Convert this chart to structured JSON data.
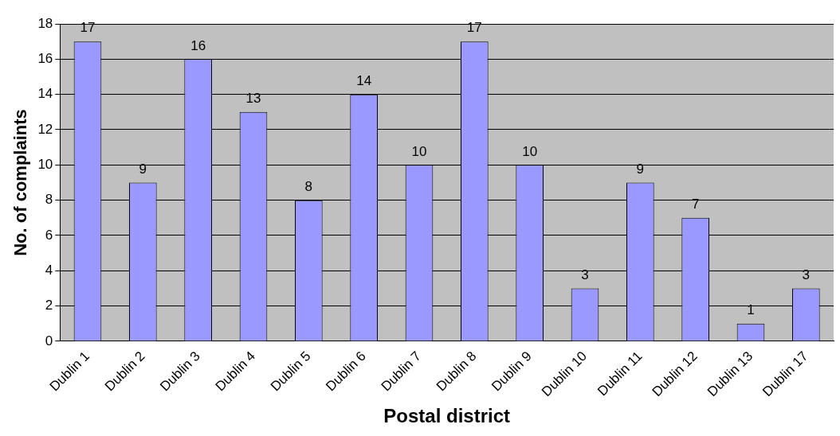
{
  "chart_data": {
    "type": "bar",
    "xlabel": "Postal district",
    "ylabel": "No. of complaints",
    "categories": [
      "Dublin 1",
      "Dublin 2",
      "Dublin 3",
      "Dublin 4",
      "Dublin 5",
      "Dublin 6",
      "Dublin 7",
      "Dublin 8",
      "Dublin 9",
      "Dublin 10",
      "Dublin 11",
      "Dublin 12",
      "Dublin 13",
      "Dublin 17"
    ],
    "values": [
      17,
      9,
      16,
      13,
      8,
      14,
      10,
      17,
      10,
      3,
      9,
      7,
      1,
      3
    ],
    "color": "#9999ff",
    "ylim": [
      0,
      18
    ],
    "yticks": [
      0,
      2,
      4,
      6,
      8,
      10,
      12,
      14,
      16,
      18
    ],
    "grid": "y",
    "legend": false,
    "data_labels": true
  }
}
